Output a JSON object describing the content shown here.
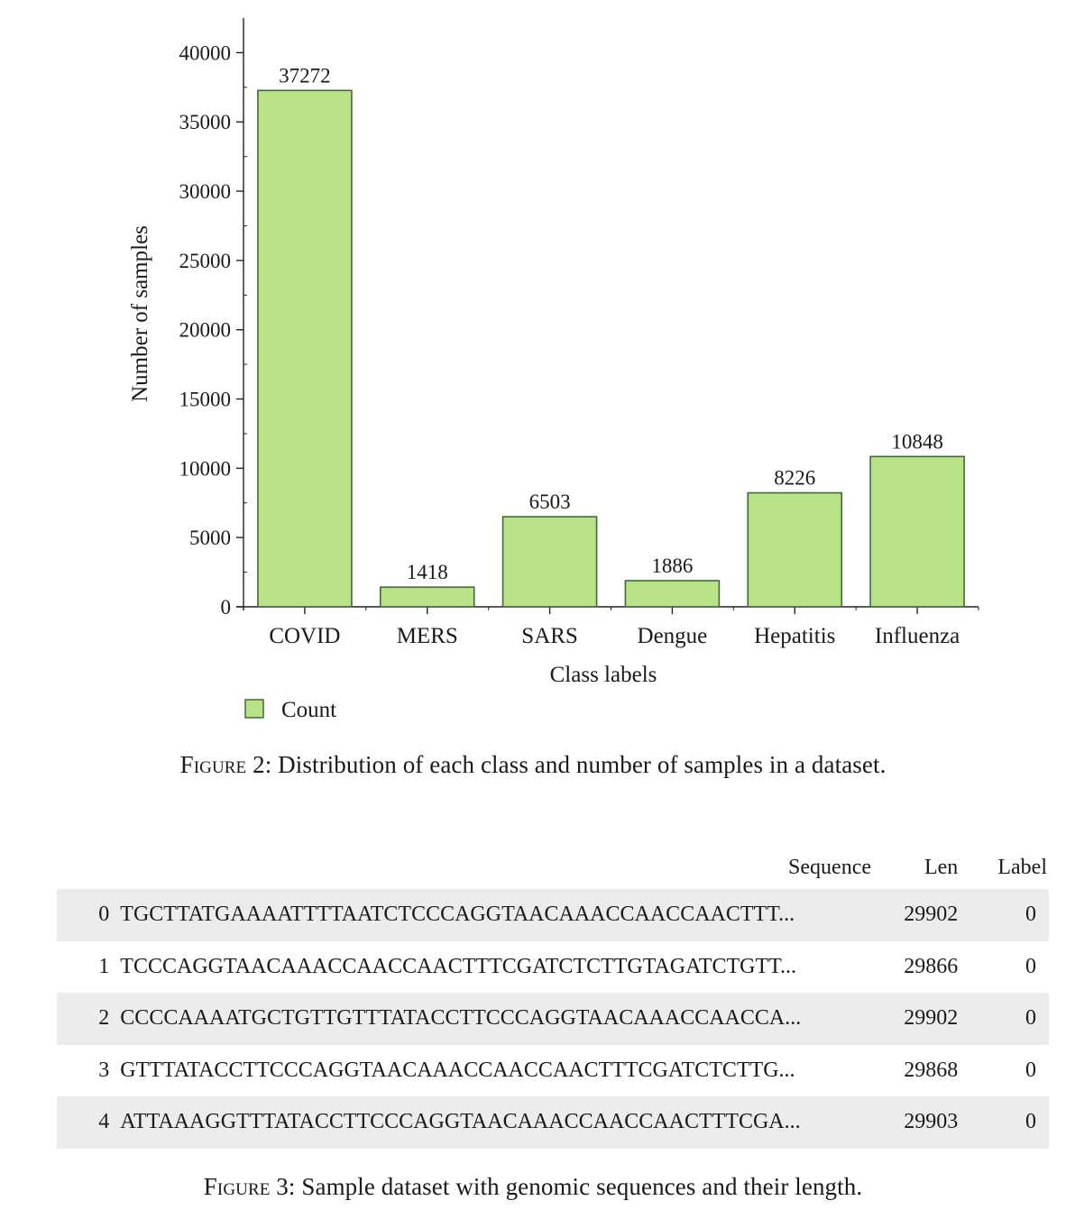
{
  "figure2": {
    "label": "Figure 2",
    "caption_text": ": Distribution of each class and number of samples in a dataset."
  },
  "chart_data": {
    "type": "bar",
    "categories": [
      "COVID",
      "MERS",
      "SARS",
      "Dengue",
      "Hepatitis",
      "Influenza"
    ],
    "series": [
      {
        "name": "Count",
        "values": [
          37272,
          1418,
          6503,
          1886,
          8226,
          10848
        ]
      }
    ],
    "data_labels": [
      "37272",
      "1418",
      "6503",
      "1886",
      "8226",
      "10848"
    ],
    "yticks": [
      0,
      5000,
      10000,
      15000,
      20000,
      25000,
      30000,
      35000,
      40000
    ],
    "xlabel": "Class labels",
    "ylabel": "Number of samples",
    "ylim": [
      0,
      42500
    ],
    "legend": {
      "label": "Count",
      "placement": "bottom-left"
    },
    "bar_color": "#b9e287",
    "bar_edge_color": "#3f6b3a",
    "grid": false
  },
  "table": {
    "headers": {
      "index": "",
      "sequence": "Sequence",
      "len": "Len",
      "label": "Label"
    },
    "rows": [
      {
        "index": "0",
        "sequence": "TGCTTATGAAAATTTTAATCTCCCAGGTAACAAACCAACCAACTTT...",
        "len": "29902",
        "label": "0"
      },
      {
        "index": "1",
        "sequence": "TCCCAGGTAACAAACCAACCAACTTTCGATCTCTTGTAGATCTGTT...",
        "len": "29866",
        "label": "0"
      },
      {
        "index": "2",
        "sequence": "CCCCAAAATGCTGTTGTTTATACCTTCCCAGGTAACAAACCAACCA...",
        "len": "29902",
        "label": "0"
      },
      {
        "index": "3",
        "sequence": "GTTTATACCTTCCCAGGTAACAAACCAACCAACTTTCGATCTCTTG...",
        "len": "29868",
        "label": "0"
      },
      {
        "index": "4",
        "sequence": "ATTAAAGGTTTATACCTTCCCAGGTAACAAACCAACCAACTTTCGA...",
        "len": "29903",
        "label": "0"
      }
    ],
    "stripe_color": "#ececec"
  },
  "figure3": {
    "label": "Figure 3",
    "caption_text": ": Sample dataset with genomic sequences and their length."
  }
}
